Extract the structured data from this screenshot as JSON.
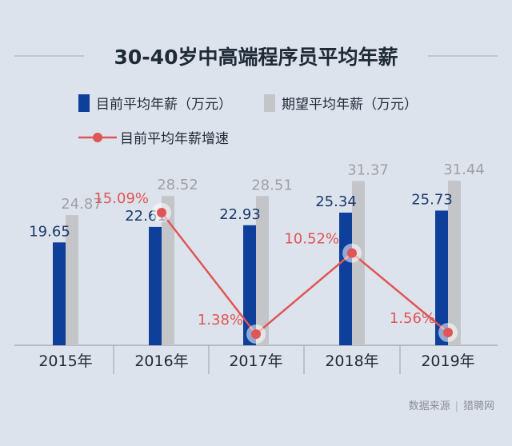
{
  "chart_data": {
    "type": "bar",
    "title": "30-40岁中高端程序员平均年薪",
    "categories": [
      "2015年",
      "2016年",
      "2017年",
      "2018年",
      "2019年"
    ],
    "series": [
      {
        "name": "目前平均年薪（万元）",
        "type": "bar",
        "color": "#0e3f9a",
        "values": [
          19.65,
          22.61,
          22.93,
          25.34,
          25.73
        ],
        "labels": [
          "19.65",
          "22.61",
          "22.93",
          "25.34",
          "25.73"
        ],
        "label_color": "#1b3a6b"
      },
      {
        "name": "期望平均年薪（万元）",
        "type": "bar",
        "color": "#c3c5c9",
        "values": [
          24.87,
          28.52,
          28.51,
          31.37,
          31.44
        ],
        "labels": [
          "24.87",
          "28.52",
          "28.51",
          "31.37",
          "31.44"
        ],
        "label_color": "#9ea1a6"
      },
      {
        "name": "目前平均年薪增速",
        "type": "line",
        "color": "#e05555",
        "values": [
          null,
          15.09,
          1.38,
          10.52,
          1.56
        ],
        "labels": [
          "",
          "15.09%",
          "1.38%",
          "10.52%",
          "1.56%"
        ],
        "label_color": "#e05555"
      }
    ],
    "legend_placement": "top-left",
    "grid": false
  },
  "source": {
    "label": "数据来源",
    "name": "猎聘网"
  }
}
